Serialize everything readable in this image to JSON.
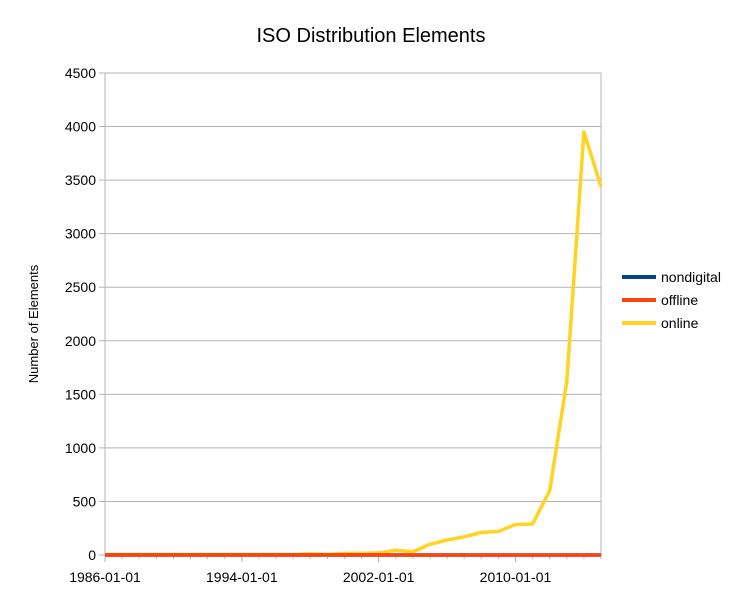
{
  "chart_data": {
    "type": "line",
    "title": "ISO Distribution Elements",
    "xlabel": "",
    "ylabel": "Number of Elements",
    "x_ticks": [
      "1986-01-01",
      "1994-01-01",
      "2002-01-01",
      "2010-01-01"
    ],
    "x_range": [
      "1986-01-01",
      "2015-01-01"
    ],
    "y_ticks": [
      0,
      500,
      1000,
      1500,
      2000,
      2500,
      3000,
      3500,
      4000,
      4500
    ],
    "ylim": [
      0,
      4500
    ],
    "grid": "horizontal",
    "legend_position": "right",
    "x": [
      "1986-01-01",
      "1987-01-01",
      "1988-01-01",
      "1989-01-01",
      "1990-01-01",
      "1991-01-01",
      "1992-01-01",
      "1993-01-01",
      "1994-01-01",
      "1995-01-01",
      "1996-01-01",
      "1997-01-01",
      "1998-01-01",
      "1999-01-01",
      "2000-01-01",
      "2001-01-01",
      "2002-01-01",
      "2003-01-01",
      "2004-01-01",
      "2005-01-01",
      "2006-01-01",
      "2007-01-01",
      "2008-01-01",
      "2009-01-01",
      "2010-01-01",
      "2011-01-01",
      "2012-01-01",
      "2013-01-01",
      "2014-01-01",
      "2015-01-01"
    ],
    "series": [
      {
        "name": "nondigital",
        "color": "#004586",
        "values": [
          0,
          0,
          0,
          0,
          0,
          0,
          0,
          0,
          0,
          0,
          0,
          0,
          0,
          0,
          0,
          0,
          0,
          0,
          0,
          0,
          0,
          0,
          0,
          0,
          0,
          0,
          0,
          0,
          0,
          0
        ]
      },
      {
        "name": "offline",
        "color": "#ff420e",
        "values": [
          0,
          0,
          0,
          0,
          0,
          0,
          0,
          0,
          0,
          0,
          0,
          0,
          0,
          0,
          0,
          0,
          0,
          0,
          0,
          0,
          0,
          0,
          0,
          0,
          0,
          0,
          0,
          0,
          0,
          0
        ]
      },
      {
        "name": "online",
        "color": "#ffd320",
        "values": [
          5,
          5,
          5,
          5,
          5,
          5,
          5,
          5,
          5,
          5,
          5,
          5,
          10,
          5,
          15,
          15,
          20,
          45,
          30,
          100,
          140,
          170,
          210,
          220,
          285,
          290,
          600,
          1620,
          3950,
          3440
        ]
      }
    ]
  }
}
